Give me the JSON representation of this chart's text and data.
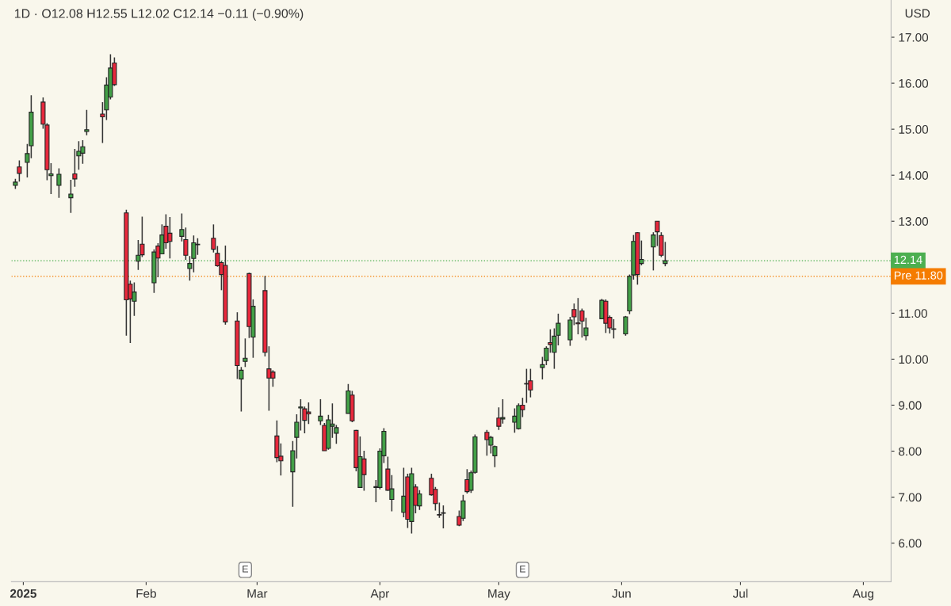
{
  "chart_data": {
    "type": "candlestick",
    "title": "1D · O12.08 H12.55 L12.02 C12.14 −0.11 (−0.90%)",
    "ylabel": "USD",
    "x": [
      "2024-12-30",
      "2024-12-31",
      "2025-01-02",
      "2025-01-03",
      "2025-01-06",
      "2025-01-07",
      "2025-01-08",
      "2025-01-10",
      "2025-01-13",
      "2025-01-14",
      "2025-01-15",
      "2025-01-16",
      "2025-01-17",
      "2025-01-21",
      "2025-01-22",
      "2025-01-23",
      "2025-01-24",
      "2025-01-27",
      "2025-01-28",
      "2025-01-29",
      "2025-01-30",
      "2025-01-31",
      "2025-02-03",
      "2025-02-04",
      "2025-02-05",
      "2025-02-06",
      "2025-02-07",
      "2025-02-10",
      "2025-02-11",
      "2025-02-12",
      "2025-02-13",
      "2025-02-14",
      "2025-02-18",
      "2025-02-19",
      "2025-02-20",
      "2025-02-21",
      "2025-02-24",
      "2025-02-25",
      "2025-02-26",
      "2025-02-27",
      "2025-02-28",
      "2025-03-03",
      "2025-03-04",
      "2025-03-05",
      "2025-03-06",
      "2025-03-07",
      "2025-03-10",
      "2025-03-11",
      "2025-03-12",
      "2025-03-13",
      "2025-03-14",
      "2025-03-17",
      "2025-03-18",
      "2025-03-19",
      "2025-03-20",
      "2025-03-21",
      "2025-03-24",
      "2025-03-25",
      "2025-03-26",
      "2025-03-27",
      "2025-03-28",
      "2025-03-31",
      "2025-04-01",
      "2025-04-02",
      "2025-04-03",
      "2025-04-04",
      "2025-04-07",
      "2025-04-08",
      "2025-04-09",
      "2025-04-10",
      "2025-04-11",
      "2025-04-14",
      "2025-04-15",
      "2025-04-16",
      "2025-04-17",
      "2025-04-21",
      "2025-04-22",
      "2025-04-23",
      "2025-04-24",
      "2025-04-25",
      "2025-04-28",
      "2025-04-29",
      "2025-04-30",
      "2025-05-01",
      "2025-05-02",
      "2025-05-05",
      "2025-05-06",
      "2025-05-07",
      "2025-05-08",
      "2025-05-09",
      "2025-05-12",
      "2025-05-13",
      "2025-05-14",
      "2025-05-15",
      "2025-05-16",
      "2025-05-19",
      "2025-05-20",
      "2025-05-21",
      "2025-05-22",
      "2025-05-23",
      "2025-05-27",
      "2025-05-28",
      "2025-05-29",
      "2025-05-30",
      "2025-06-02",
      "2025-06-03",
      "2025-06-04",
      "2025-06-05",
      "2025-06-06",
      "2025-06-09",
      "2025-06-10",
      "2025-06-11",
      "2025-06-12"
    ],
    "ohlc": [
      [
        13.78,
        13.92,
        13.7,
        13.85
      ],
      [
        14.18,
        14.32,
        13.86,
        14.04
      ],
      [
        14.28,
        14.68,
        13.95,
        14.47
      ],
      [
        14.64,
        15.74,
        14.37,
        15.37
      ],
      [
        15.59,
        15.69,
        15.01,
        15.11
      ],
      [
        15.09,
        15.13,
        13.89,
        14.12
      ],
      [
        13.99,
        14.26,
        13.59,
        14.03
      ],
      [
        13.78,
        14.15,
        13.51,
        14.02
      ],
      [
        13.51,
        13.9,
        13.18,
        13.59
      ],
      [
        14.03,
        14.57,
        13.75,
        13.92
      ],
      [
        14.42,
        14.74,
        14.12,
        14.52
      ],
      [
        14.48,
        14.76,
        14.25,
        14.62
      ],
      [
        14.95,
        15.42,
        14.87,
        14.99
      ],
      [
        15.33,
        15.59,
        14.7,
        15.27
      ],
      [
        15.42,
        16.13,
        15.2,
        15.96
      ],
      [
        15.7,
        16.63,
        15.65,
        16.33
      ],
      [
        16.44,
        16.56,
        15.94,
        15.97
      ],
      [
        13.18,
        13.25,
        10.51,
        11.29
      ],
      [
        11.63,
        11.71,
        10.35,
        11.31
      ],
      [
        11.26,
        11.67,
        10.94,
        11.46
      ],
      [
        12.13,
        12.59,
        11.94,
        12.26
      ],
      [
        12.5,
        13.1,
        12.22,
        12.27
      ],
      [
        11.66,
        12.39,
        11.44,
        12.33
      ],
      [
        12.46,
        12.52,
        11.78,
        12.2
      ],
      [
        12.29,
        12.93,
        12.29,
        12.7
      ],
      [
        12.89,
        13.15,
        12.4,
        12.53
      ],
      [
        12.74,
        13.09,
        12.19,
        12.56
      ],
      [
        12.67,
        13.17,
        12.56,
        12.82
      ],
      [
        12.6,
        12.86,
        12.16,
        12.26
      ],
      [
        11.97,
        12.24,
        11.71,
        12.08
      ],
      [
        12.19,
        12.69,
        11.89,
        12.53
      ],
      [
        12.49,
        12.63,
        12.27,
        12.5
      ],
      [
        12.63,
        12.93,
        12.32,
        12.39
      ],
      [
        12.3,
        12.46,
        12.01,
        12.03
      ],
      [
        12.1,
        12.13,
        11.5,
        11.84
      ],
      [
        12.04,
        12.47,
        10.75,
        10.81
      ],
      [
        10.83,
        11.02,
        9.57,
        9.86
      ],
      [
        9.57,
        9.83,
        8.86,
        9.76
      ],
      [
        9.95,
        10.45,
        9.83,
        10.02
      ],
      [
        11.86,
        11.88,
        10.46,
        10.71
      ],
      [
        10.48,
        11.3,
        10.03,
        11.15
      ],
      [
        11.49,
        11.81,
        10.06,
        10.15
      ],
      [
        9.79,
        10.28,
        8.88,
        9.59
      ],
      [
        9.72,
        9.76,
        9.4,
        9.59
      ],
      [
        8.33,
        8.67,
        7.76,
        7.86
      ],
      [
        7.89,
        8.17,
        7.47,
        7.79
      ],
      [
        7.55,
        8.22,
        6.79,
        8.01
      ],
      [
        8.3,
        8.8,
        7.84,
        8.63
      ],
      [
        8.94,
        9.13,
        8.45,
        8.96
      ],
      [
        8.92,
        8.97,
        8.39,
        8.67
      ],
      [
        8.85,
        9.06,
        8.59,
        8.81
      ],
      [
        8.66,
        9.13,
        8.57,
        8.76
      ],
      [
        8.56,
        8.61,
        8.01,
        8.01
      ],
      [
        8.06,
        8.79,
        8.03,
        8.68
      ],
      [
        8.54,
        9.04,
        8.29,
        8.59
      ],
      [
        8.39,
        8.57,
        8.16,
        8.51
      ],
      [
        8.82,
        9.46,
        8.82,
        9.31
      ],
      [
        9.22,
        9.31,
        8.63,
        8.66
      ],
      [
        8.45,
        8.46,
        7.56,
        7.64
      ],
      [
        7.21,
        8.32,
        7.2,
        7.88
      ],
      [
        7.83,
        8.01,
        7.14,
        7.49
      ],
      [
        7.23,
        7.37,
        6.89,
        7.21
      ],
      [
        7.21,
        8.06,
        7.17,
        8.0
      ],
      [
        7.9,
        8.5,
        7.74,
        8.43
      ],
      [
        7.61,
        7.88,
        7.14,
        7.15
      ],
      [
        6.95,
        7.48,
        6.69,
        7.18
      ],
      [
        6.67,
        7.64,
        6.56,
        7.02
      ],
      [
        7.44,
        7.51,
        6.33,
        6.52
      ],
      [
        6.47,
        7.64,
        6.21,
        7.51
      ],
      [
        7.22,
        7.28,
        6.65,
        6.82
      ],
      [
        6.81,
        7.15,
        6.72,
        7.07
      ],
      [
        7.41,
        7.51,
        7.03,
        7.05
      ],
      [
        7.17,
        7.22,
        6.71,
        6.86
      ],
      [
        6.62,
        6.88,
        6.55,
        6.61
      ],
      [
        6.66,
        6.82,
        6.32,
        6.65
      ],
      [
        6.58,
        6.71,
        6.37,
        6.39
      ],
      [
        6.54,
        7.05,
        6.48,
        6.92
      ],
      [
        7.38,
        7.61,
        7.08,
        7.12
      ],
      [
        7.15,
        7.58,
        7.09,
        7.53
      ],
      [
        7.54,
        8.36,
        7.51,
        8.31
      ],
      [
        8.41,
        8.46,
        7.9,
        8.25
      ],
      [
        8.13,
        8.33,
        7.95,
        8.3
      ],
      [
        7.9,
        8.12,
        7.65,
        8.1
      ],
      [
        8.72,
        8.95,
        8.46,
        8.54
      ],
      [
        8.7,
        9.13,
        8.6,
        8.73
      ],
      [
        8.63,
        8.93,
        8.4,
        8.76
      ],
      [
        8.49,
        9.04,
        8.47,
        8.99
      ],
      [
        9.0,
        9.16,
        8.74,
        8.9
      ],
      [
        9.46,
        9.79,
        9.05,
        9.47
      ],
      [
        9.53,
        9.79,
        9.17,
        9.33
      ],
      [
        9.82,
        10.05,
        9.56,
        9.88
      ],
      [
        9.97,
        10.28,
        9.87,
        10.24
      ],
      [
        10.36,
        10.65,
        10.14,
        10.32
      ],
      [
        10.15,
        10.67,
        9.79,
        10.5
      ],
      [
        10.52,
        10.99,
        10.3,
        10.78
      ],
      [
        10.42,
        10.92,
        10.29,
        10.85
      ],
      [
        11.08,
        11.21,
        10.74,
        10.92
      ],
      [
        10.79,
        11.33,
        10.54,
        10.77
      ],
      [
        11.05,
        11.1,
        10.47,
        10.83
      ],
      [
        10.51,
        10.9,
        10.41,
        10.68
      ],
      [
        10.88,
        11.31,
        10.88,
        11.28
      ],
      [
        11.26,
        11.3,
        10.57,
        10.78
      ],
      [
        10.91,
        10.95,
        10.56,
        10.68
      ],
      [
        10.66,
        10.87,
        10.45,
        10.65
      ],
      [
        10.55,
        10.94,
        10.51,
        10.92
      ],
      [
        11.05,
        11.84,
        10.98,
        11.8
      ],
      [
        11.83,
        12.7,
        11.73,
        12.56
      ],
      [
        12.75,
        12.76,
        11.62,
        11.84
      ],
      [
        12.08,
        12.58,
        12.04,
        12.17
      ],
      [
        12.44,
        12.76,
        11.93,
        12.7
      ],
      [
        13.0,
        13.0,
        12.46,
        12.77
      ],
      [
        12.69,
        12.76,
        12.22,
        12.26
      ],
      [
        12.08,
        12.55,
        12.02,
        12.14
      ]
    ],
    "colors": [
      "#43a047",
      "#e8283c",
      "#43a047",
      "#43a047",
      "#e8283c",
      "#e8283c",
      "#43a047",
      "#43a047",
      "#43a047",
      "#e8283c",
      "#43a047",
      "#43a047",
      "#43a047",
      "#e8283c",
      "#43a047",
      "#43a047",
      "#e8283c",
      "#e8283c",
      "#e8283c",
      "#43a047",
      "#43a047",
      "#e8283c",
      "#43a047",
      "#e8283c",
      "#43a047",
      "#e8283c",
      "#e8283c",
      "#43a047",
      "#e8283c",
      "#43a047",
      "#43a047",
      "#43a047",
      "#e8283c",
      "#e8283c",
      "#e8283c",
      "#e8283c",
      "#e8283c",
      "#43a047",
      "#43a047",
      "#e8283c",
      "#43a047",
      "#e8283c",
      "#e8283c",
      "#e8283c",
      "#e8283c",
      "#e8283c",
      "#43a047",
      "#43a047",
      "#43a047",
      "#e8283c",
      "#e8283c",
      "#43a047",
      "#e8283c",
      "#43a047",
      "#43a047",
      "#43a047",
      "#43a047",
      "#e8283c",
      "#e8283c",
      "#43a047",
      "#e8283c",
      "#e8283c",
      "#43a047",
      "#43a047",
      "#e8283c",
      "#43a047",
      "#43a047",
      "#e8283c",
      "#43a047",
      "#e8283c",
      "#43a047",
      "#e8283c",
      "#e8283c",
      "#e8283c",
      "#e8283c",
      "#e8283c",
      "#43a047",
      "#e8283c",
      "#43a047",
      "#43a047",
      "#e8283c",
      "#43a047",
      "#43a047",
      "#e8283c",
      "#43a047",
      "#43a047",
      "#43a047",
      "#e8283c",
      "#43a047",
      "#e8283c",
      "#43a047",
      "#43a047",
      "#e8283c",
      "#43a047",
      "#43a047",
      "#43a047",
      "#e8283c",
      "#e8283c",
      "#e8283c",
      "#43a047",
      "#43a047",
      "#e8283c",
      "#e8283c",
      "#e8283c",
      "#43a047",
      "#43a047",
      "#43a047",
      "#e8283c",
      "#43a047",
      "#43a047",
      "#e8283c",
      "#e8283c",
      "#43a047"
    ],
    "xlim": [
      "2024-12-29",
      "2025-08-08"
    ],
    "xticks": [
      {
        "value": "2025-01-01",
        "label": "2025"
      },
      {
        "value": "2025-02-01",
        "label": "Feb"
      },
      {
        "value": "2025-03-01",
        "label": "Mar"
      },
      {
        "value": "2025-04-01",
        "label": "Apr"
      },
      {
        "value": "2025-05-01",
        "label": "May"
      },
      {
        "value": "2025-06-01",
        "label": "Jun"
      },
      {
        "value": "2025-07-01",
        "label": "Jul"
      },
      {
        "value": "2025-08-01",
        "label": "Aug"
      }
    ],
    "ylim": [
      5.16,
      17.81
    ],
    "yticks": [
      {
        "value": 6,
        "label": "6.00"
      },
      {
        "value": 7,
        "label": "7.00"
      },
      {
        "value": 8,
        "label": "8.00"
      },
      {
        "value": 9,
        "label": "9.00"
      },
      {
        "value": 10,
        "label": "10.00"
      },
      {
        "value": 11,
        "label": "11.00"
      },
      {
        "value": 12,
        "label": null
      },
      {
        "value": 13,
        "label": "13.00"
      },
      {
        "value": 14,
        "label": "14.00"
      },
      {
        "value": 15,
        "label": "15.00"
      },
      {
        "value": 16,
        "label": "16.00"
      },
      {
        "value": 17,
        "label": "17.00"
      }
    ],
    "ref_lines": [
      {
        "axis": "y",
        "value": 12.14,
        "label": "12.14",
        "color": "#4caf50",
        "line_style": "dotted"
      },
      {
        "axis": "y",
        "value": 11.8,
        "label": "Pre 11.80",
        "color": "#f57c00",
        "line_style": "dotted"
      }
    ],
    "annotations": [
      {
        "text": "E",
        "x": "2025-02-26",
        "y": 5.42
      },
      {
        "text": "E",
        "x": "2025-05-07",
        "y": 5.42
      }
    ],
    "grid": false
  }
}
